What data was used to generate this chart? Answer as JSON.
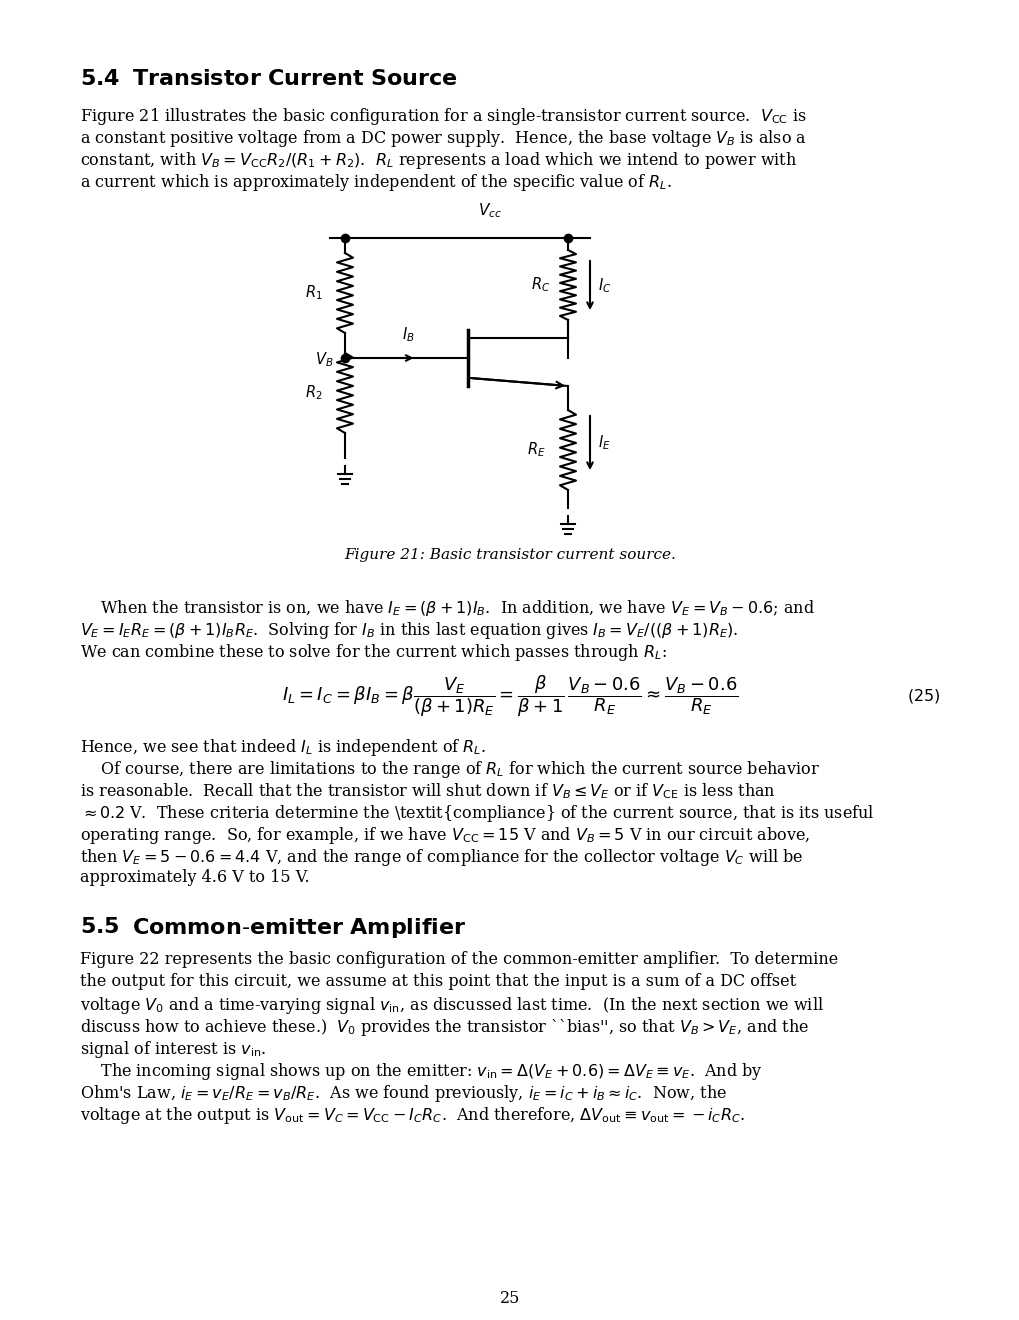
{
  "title_54": "5.4\\quad Transistor Current Source",
  "title_55": "5.5\\quad Common-emitter Amplifier",
  "page_number": "25",
  "bg_color": "#ffffff",
  "text_color": "#000000",
  "fig_caption": "Figure 21: Basic transistor current source.",
  "equation_label": "(25)"
}
